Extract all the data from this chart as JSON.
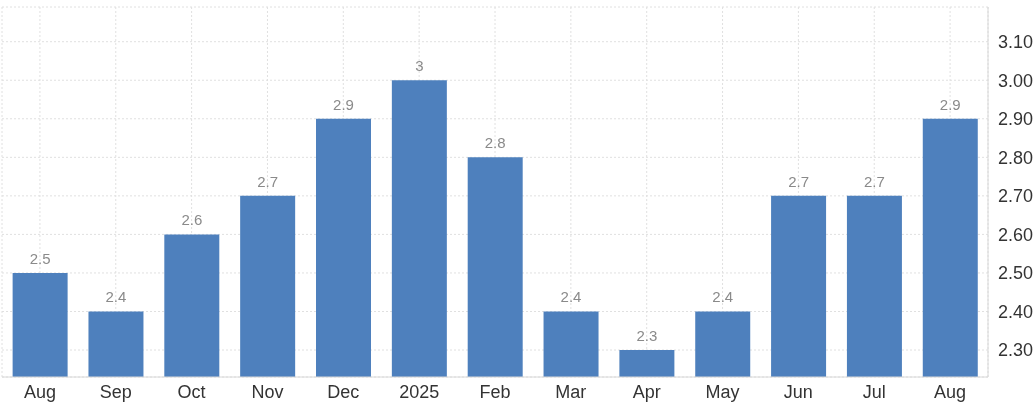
{
  "chart_data": {
    "type": "bar",
    "categories": [
      "Aug",
      "Sep",
      "Oct",
      "Nov",
      "Dec",
      "2025",
      "Feb",
      "Mar",
      "Apr",
      "May",
      "Jun",
      "Jul",
      "Aug"
    ],
    "values": [
      2.5,
      2.4,
      2.6,
      2.7,
      2.9,
      3,
      2.8,
      2.4,
      2.3,
      2.4,
      2.7,
      2.7,
      2.9
    ],
    "color": "#4e80bd",
    "ylim": [
      2.23,
      3.19
    ],
    "yticks": [
      {
        "value": 2.3,
        "label": "2.30"
      },
      {
        "value": 2.4,
        "label": "2.40"
      },
      {
        "value": 2.5,
        "label": "2.50"
      },
      {
        "value": 2.6,
        "label": "2.60"
      },
      {
        "value": 2.7,
        "label": "2.70"
      },
      {
        "value": 2.8,
        "label": "2.80"
      },
      {
        "value": 2.9,
        "label": "2.90"
      },
      {
        "value": 3.0,
        "label": "3.00"
      },
      {
        "value": 3.1,
        "label": "3.10"
      }
    ],
    "grid": true,
    "data_labels": true
  }
}
